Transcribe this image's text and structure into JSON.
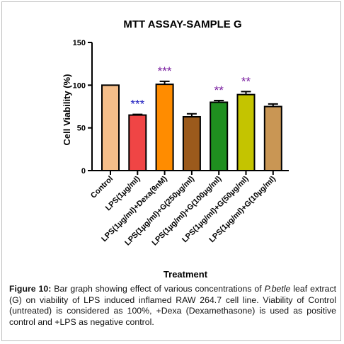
{
  "chart_data": {
    "type": "bar",
    "title": "MTT ASSAY-SAMPLE G",
    "xlabel": "Treatment",
    "ylabel": "Cell Viability (%)",
    "ylim": [
      0,
      150
    ],
    "yticks": [
      0,
      50,
      100,
      150
    ],
    "ytick_labels": [
      "0",
      "50",
      "100",
      "150"
    ],
    "categories": [
      "Control",
      "LPS(1µg/ml)",
      "LPS(1µg/ml)+Dexa(9nM)",
      "LPS(1µg/ml)+G(250µg/ml)",
      "LPS(1µg/ml)+G(100µg/ml)",
      "LPS(1µg/ml)+G(50µg/ml)",
      "LPS(1µg/ml)+G(10µg/ml)"
    ],
    "values": [
      100,
      65,
      101,
      63,
      80,
      89,
      75
    ],
    "errors": [
      0,
      0.8,
      3.5,
      3.5,
      2,
      3.5,
      3
    ],
    "bar_colors": [
      "#f5be8a",
      "#f04545",
      "#ff8c00",
      "#9b5a1c",
      "#1f8f1f",
      "#c4c400",
      "#c99654"
    ],
    "annotations": [
      "",
      "***",
      "***",
      "",
      "**",
      "**",
      ""
    ],
    "annotation_colors": [
      "",
      "#2020c0",
      "#7a1fa0",
      "",
      "#7a1fa0",
      "#7a1fa0",
      ""
    ],
    "grid": false
  },
  "caption": {
    "label": "Figure 10:",
    "part1": " Bar graph showing effect of various concentrations of ",
    "species": "P.betle",
    "part2": " leaf extract (G) on viability of LPS induced inflamed RAW 264.7 cell line. Viability of Control (untreated) is considered as 100%, +Dexa (Dexamethasone) is used as positive control and +LPS as negative control."
  }
}
